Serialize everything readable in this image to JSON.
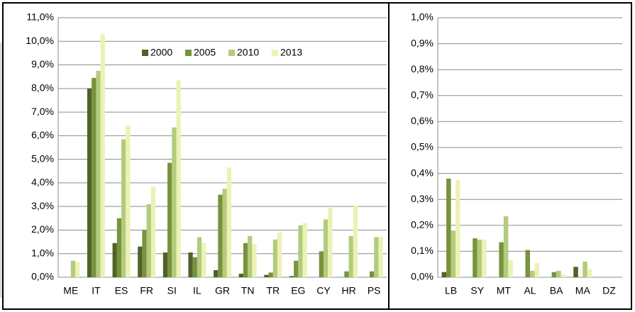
{
  "chart_data": [
    {
      "type": "bar",
      "categories": [
        "ME",
        "IT",
        "ES",
        "FR",
        "SI",
        "IL",
        "GR",
        "TN",
        "TR",
        "EG",
        "CY",
        "HR",
        "PS"
      ],
      "series": [
        {
          "name": "2000",
          "color": "#4f6228",
          "values": [
            0,
            8.0,
            1.45,
            1.3,
            1.05,
            1.05,
            0.3,
            0.15,
            0.1,
            0.05,
            0,
            0,
            0
          ]
        },
        {
          "name": "2005",
          "color": "#77933c",
          "values": [
            0,
            8.45,
            2.5,
            2.0,
            4.85,
            0.85,
            3.5,
            1.45,
            0.2,
            0.7,
            1.1,
            0.25,
            0.25
          ]
        },
        {
          "name": "2010",
          "color": "#b3cb7c",
          "values": [
            0.7,
            8.75,
            5.85,
            3.1,
            6.35,
            1.7,
            3.75,
            1.75,
            1.6,
            2.2,
            2.45,
            1.75,
            1.7
          ]
        },
        {
          "name": "2013",
          "color": "#ecf2b4",
          "values": [
            0.65,
            10.3,
            6.45,
            3.85,
            8.35,
            1.45,
            4.65,
            1.4,
            1.9,
            2.3,
            2.95,
            3.05,
            1.7
          ]
        }
      ],
      "ylim": [
        0,
        11
      ],
      "yticks": [
        {
          "value": 0,
          "label": "0,0%"
        },
        {
          "value": 1,
          "label": "1,0%"
        },
        {
          "value": 2,
          "label": "2,0%"
        },
        {
          "value": 3,
          "label": "3,0%"
        },
        {
          "value": 4,
          "label": "4,0%"
        },
        {
          "value": 5,
          "label": "5,0%"
        },
        {
          "value": 6,
          "label": "6,0%"
        },
        {
          "value": 7,
          "label": "7,0%"
        },
        {
          "value": 8,
          "label": "8,0%"
        },
        {
          "value": 9,
          "label": "9,0%"
        },
        {
          "value": 10,
          "label": "10,0%"
        },
        {
          "value": 11,
          "label": "11,0%"
        }
      ],
      "grid": true,
      "legend": "top"
    },
    {
      "type": "bar",
      "categories": [
        "LB",
        "SY",
        "MT",
        "AL",
        "BA",
        "MA",
        "DZ"
      ],
      "series": [
        {
          "color": "#4f6228",
          "values": [
            0.02,
            0,
            0,
            0,
            0,
            0.04,
            0
          ]
        },
        {
          "color": "#77933c",
          "values": [
            0.38,
            0.15,
            0.135,
            0.105,
            0.02,
            0,
            0
          ]
        },
        {
          "color": "#b3cb7c",
          "values": [
            0.18,
            0.145,
            0.235,
            0.025,
            0.025,
            0.06,
            0
          ]
        },
        {
          "color": "#ecf2b4",
          "values": [
            0.375,
            0.145,
            0.065,
            0.055,
            0.01,
            0.03,
            0
          ]
        }
      ],
      "ylim": [
        0,
        1
      ],
      "yticks": [
        {
          "value": 0,
          "label": "0,0%"
        },
        {
          "value": 0.1,
          "label": "0,1%"
        },
        {
          "value": 0.2,
          "label": "0,2%"
        },
        {
          "value": 0.3,
          "label": "0,3%"
        },
        {
          "value": 0.4,
          "label": "0,4%"
        },
        {
          "value": 0.5,
          "label": "0,5%"
        },
        {
          "value": 0.6,
          "label": "0,6%"
        },
        {
          "value": 0.7,
          "label": "0,7%"
        },
        {
          "value": 0.8,
          "label": "0,8%"
        },
        {
          "value": 0.9,
          "label": "0,9%"
        },
        {
          "value": 1,
          "label": "1,0%"
        }
      ],
      "grid": true
    }
  ]
}
